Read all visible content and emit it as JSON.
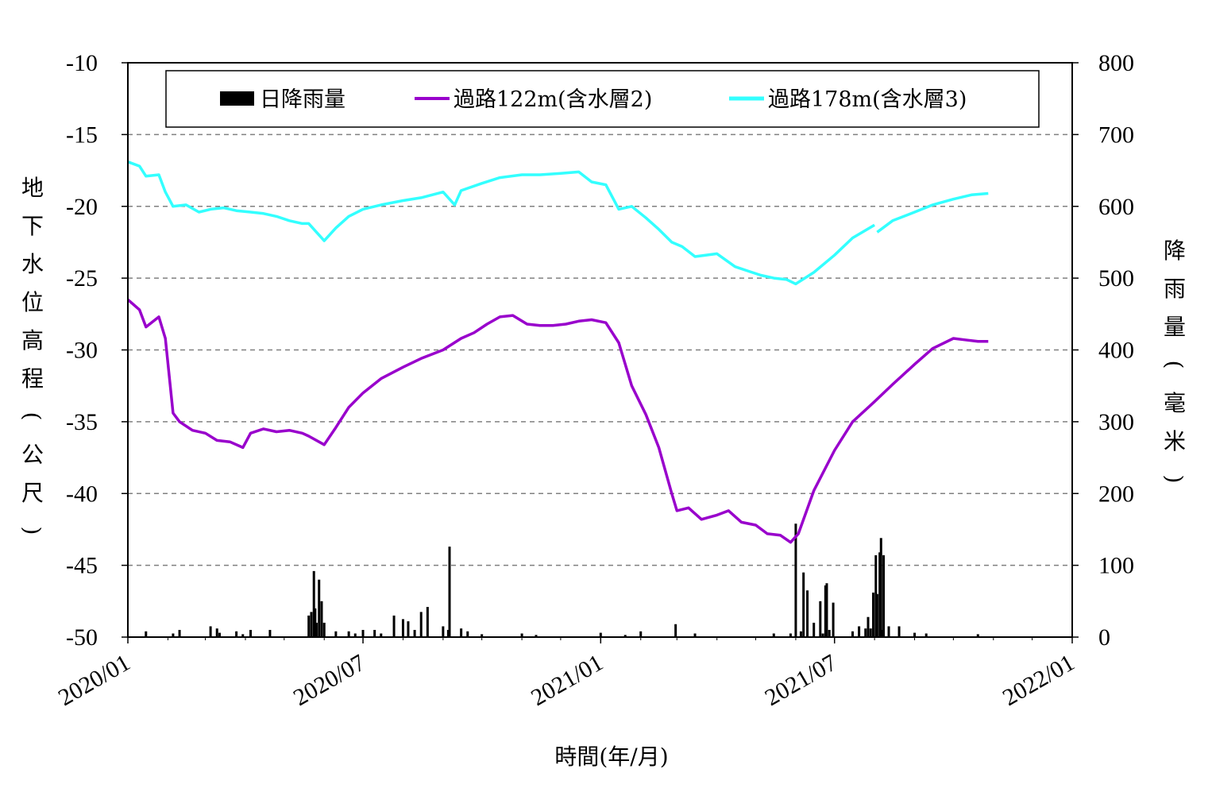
{
  "chart_data": {
    "type": "line",
    "y_left_label": "地下水位高程(公尺)",
    "y_right_label": "降雨量(毫米)",
    "x_label": "時間(年/月)",
    "x_ticks": [
      "2020/01",
      "2020/07",
      "2021/01",
      "2021/07",
      "2022/01"
    ],
    "y_left_ticks": [
      "-10",
      "-15",
      "-20",
      "-25",
      "-30",
      "-35",
      "-40",
      "-45",
      "-50"
    ],
    "y_right_ticks": [
      "800",
      "700",
      "600",
      "500",
      "400",
      "300",
      "200",
      "100",
      "0"
    ],
    "ylim_left": [
      -50,
      -10
    ],
    "ylim_right": [
      0,
      800
    ],
    "xlim": [
      "2020-01-01",
      "2022-01-01"
    ],
    "grid": "horizontal-dashed",
    "legend": {
      "placement": "top",
      "entries": [
        "日降雨量",
        "過路122m(含水層2)",
        "過路178m(含水層3)"
      ]
    },
    "colors": {
      "rain": "#000000",
      "aq2": "#9900CC",
      "aq3": "#33FFFF",
      "grid": "#808080"
    },
    "series": [
      {
        "name": "過路122m(含水層2)",
        "x": [
          "2020-01-01",
          "2020-01-10",
          "2020-01-15",
          "2020-01-25",
          "2020-01-30",
          "2020-02-05",
          "2020-02-10",
          "2020-02-20",
          "2020-03-01",
          "2020-03-10",
          "2020-03-20",
          "2020-03-30",
          "2020-04-05",
          "2020-04-15",
          "2020-04-25",
          "2020-05-05",
          "2020-05-15",
          "2020-05-20",
          "2020-06-01",
          "2020-06-10",
          "2020-06-20",
          "2020-07-01",
          "2020-07-15",
          "2020-08-01",
          "2020-08-15",
          "2020-09-01",
          "2020-09-15",
          "2020-09-25",
          "2020-10-05",
          "2020-10-15",
          "2020-10-25",
          "2020-11-05",
          "2020-11-15",
          "2020-11-25",
          "2020-12-05",
          "2020-12-15",
          "2020-12-25",
          "2021-01-05",
          "2021-01-15",
          "2021-01-25",
          "2021-02-05",
          "2021-02-15",
          "2021-02-25",
          "2021-03-01",
          "2021-03-10",
          "2021-03-20",
          "2021-04-01",
          "2021-04-10",
          "2021-04-20",
          "2021-05-01",
          "2021-05-10",
          "2021-05-20",
          "2021-05-28",
          "2021-06-03",
          "2021-06-15",
          "2021-07-01",
          "2021-07-15",
          "2021-08-01",
          "2021-08-15",
          "2021-09-01",
          "2021-09-15",
          "2021-10-01",
          "2021-10-10",
          "2021-10-20",
          "2021-10-28"
        ],
        "y": [
          -26.5,
          -27.2,
          -28.4,
          -27.7,
          -29.2,
          -34.4,
          -35.0,
          -35.6,
          -35.8,
          -36.3,
          -36.4,
          -36.8,
          -35.8,
          -35.5,
          -35.7,
          -35.6,
          -35.8,
          -36.0,
          -36.6,
          -35.4,
          -34.0,
          -33.0,
          -32.0,
          -31.2,
          -30.6,
          -30.0,
          -29.2,
          -28.8,
          -28.2,
          -27.7,
          -27.6,
          -28.2,
          -28.3,
          -28.3,
          -28.2,
          -28.0,
          -27.9,
          -28.1,
          -29.5,
          -32.5,
          -34.5,
          -36.8,
          -40.0,
          -41.2,
          -41.0,
          -41.8,
          -41.5,
          -41.2,
          -42.0,
          -42.2,
          -42.8,
          -42.9,
          -43.4,
          -42.8,
          -39.8,
          -37.0,
          -35.0,
          -33.6,
          -32.4,
          -31.0,
          -29.9,
          -29.2,
          -29.3,
          -29.4,
          -29.4
        ]
      },
      {
        "name": "過路178m(含水層3)",
        "x": [
          "2020-01-01",
          "2020-01-10",
          "2020-01-15",
          "2020-01-25",
          "2020-01-30",
          "2020-02-05",
          "2020-02-15",
          "2020-02-25",
          "2020-03-05",
          "2020-03-15",
          "2020-03-25",
          "2020-04-05",
          "2020-04-15",
          "2020-04-25",
          "2020-05-05",
          "2020-05-15",
          "2020-05-20",
          "2020-06-01",
          "2020-06-10",
          "2020-06-20",
          "2020-07-01",
          "2020-07-15",
          "2020-08-01",
          "2020-08-15",
          "2020-09-01",
          "2020-09-10",
          "2020-09-15",
          "2020-10-01",
          "2020-10-15",
          "2020-11-01",
          "2020-11-15",
          "2020-12-01",
          "2020-12-15",
          "2020-12-25",
          "2021-01-05",
          "2021-01-15",
          "2021-01-25",
          "2021-02-05",
          "2021-02-15",
          "2021-02-25",
          "2021-03-05",
          "2021-03-15",
          "2021-04-01",
          "2021-04-15",
          "2021-04-25",
          "2021-05-05",
          "2021-05-15",
          "2021-05-25",
          "2021-06-01",
          "2021-06-15",
          "2021-07-01",
          "2021-07-15",
          "2021-08-01"
        ],
        "y": [
          -16.9,
          -17.2,
          -17.9,
          -17.8,
          -19.0,
          -20.0,
          -19.9,
          -20.4,
          -20.2,
          -20.1,
          -20.3,
          -20.4,
          -20.5,
          -20.7,
          -21.0,
          -21.2,
          -21.2,
          -22.4,
          -21.5,
          -20.7,
          -20.2,
          -19.9,
          -19.6,
          -19.4,
          -19.0,
          -19.9,
          -18.9,
          -18.4,
          -18.0,
          -17.8,
          -17.8,
          -17.7,
          -17.6,
          -18.3,
          -18.5,
          -20.2,
          -20.0,
          -20.8,
          -21.6,
          -22.5,
          -22.8,
          -23.5,
          -23.3,
          -24.2,
          -24.5,
          -24.8,
          -25.0,
          -25.1,
          -25.4,
          -24.6,
          -23.4,
          -22.2,
          -21.3
        ]
      },
      {
        "name": "過路178m(含水層3)",
        "x": [
          "2021-08-03",
          "2021-08-15",
          "2021-09-01",
          "2021-09-15",
          "2021-10-01",
          "2021-10-15",
          "2021-10-28"
        ],
        "y": [
          -21.8,
          -21.0,
          -20.4,
          -19.9,
          -19.5,
          -19.2,
          -19.1
        ]
      }
    ],
    "rain": {
      "name": "日降雨量",
      "x": [
        "2020-01-15",
        "2020-02-05",
        "2020-02-10",
        "2020-03-05",
        "2020-03-10",
        "2020-03-12",
        "2020-03-25",
        "2020-03-30",
        "2020-04-05",
        "2020-04-20",
        "2020-05-20",
        "2020-05-22",
        "2020-05-24",
        "2020-05-25",
        "2020-05-26",
        "2020-05-28",
        "2020-05-30",
        "2020-06-01",
        "2020-06-10",
        "2020-06-20",
        "2020-06-25",
        "2020-07-01",
        "2020-07-10",
        "2020-07-15",
        "2020-07-25",
        "2020-08-01",
        "2020-08-05",
        "2020-08-10",
        "2020-08-15",
        "2020-08-20",
        "2020-09-01",
        "2020-09-05",
        "2020-09-06",
        "2020-09-15",
        "2020-09-20",
        "2020-10-01",
        "2020-11-01",
        "2020-11-12",
        "2021-01-01",
        "2021-01-20",
        "2021-02-01",
        "2021-02-28",
        "2021-03-15",
        "2021-05-15",
        "2021-05-28",
        "2021-06-01",
        "2021-06-05",
        "2021-06-07",
        "2021-06-10",
        "2021-06-15",
        "2021-06-20",
        "2021-06-22",
        "2021-06-24",
        "2021-06-25",
        "2021-06-27",
        "2021-06-30",
        "2021-07-15",
        "2021-07-20",
        "2021-07-25",
        "2021-07-27",
        "2021-07-29",
        "2021-07-31",
        "2021-08-02",
        "2021-08-03",
        "2021-08-05",
        "2021-08-06",
        "2021-08-07",
        "2021-08-08",
        "2021-08-12",
        "2021-08-20",
        "2021-09-01",
        "2021-09-10",
        "2021-10-20"
      ],
      "values": [
        8,
        5,
        10,
        15,
        12,
        6,
        8,
        4,
        10,
        10,
        30,
        35,
        92,
        40,
        20,
        80,
        50,
        20,
        8,
        8,
        5,
        10,
        10,
        5,
        30,
        25,
        22,
        10,
        35,
        42,
        15,
        10,
        126,
        12,
        8,
        4,
        5,
        3,
        6,
        3,
        8,
        18,
        5,
        5,
        5,
        158,
        8,
        90,
        65,
        20,
        50,
        5,
        72,
        75,
        10,
        48,
        8,
        15,
        12,
        28,
        12,
        62,
        114,
        60,
        118,
        138,
        10,
        114,
        15,
        15,
        6,
        5,
        4
      ]
    }
  }
}
